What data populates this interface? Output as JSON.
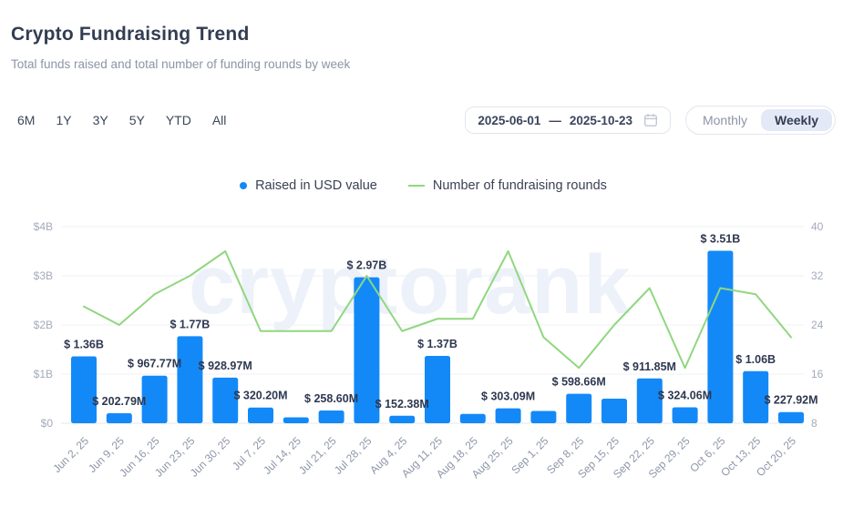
{
  "header": {
    "title": "Crypto Fundraising Trend",
    "subtitle": "Total funds raised and total number of funding rounds by week"
  },
  "controls": {
    "ranges": [
      "6M",
      "1Y",
      "3Y",
      "5Y",
      "YTD",
      "All"
    ],
    "date_range": {
      "start": "2025-06-01",
      "separator": "—",
      "end": "2025-10-23"
    },
    "interval_toggle": {
      "options": [
        "Monthly",
        "Weekly"
      ],
      "selected": "Weekly"
    }
  },
  "legend": {
    "raised_label": "Raised in USD value",
    "rounds_label": "Number of fundraising rounds"
  },
  "watermark": {
    "text": "cryptorank"
  },
  "colors": {
    "bar": "#1389f8",
    "line": "#90d77f"
  },
  "chart_data": {
    "type": "bar+line",
    "title": "Crypto Fundraising Trend",
    "categories": [
      "Jun 2, 25",
      "Jun 9, 25",
      "Jun 16, 25",
      "Jun 23, 25",
      "Jun 30, 25",
      "Jul 7, 25",
      "Jul 14, 25",
      "Jul 21, 25",
      "Jul 28, 25",
      "Aug 4, 25",
      "Aug 11, 25",
      "Aug 18, 25",
      "Aug 25, 25",
      "Sep 1, 25",
      "Sep 8, 25",
      "Sep 15, 25",
      "Sep 22, 25",
      "Sep 29, 25",
      "Oct 6, 25",
      "Oct 13, 25",
      "Oct 20, 25"
    ],
    "series": [
      {
        "name": "Raised in USD value",
        "type": "bar",
        "axis": "left",
        "unit": "USD billions",
        "values": [
          1.36,
          0.20279,
          0.96777,
          1.77,
          0.92897,
          0.3202,
          0.12,
          0.2586,
          2.97,
          0.15238,
          1.37,
          0.19,
          0.30309,
          0.25,
          0.59866,
          0.5,
          0.91185,
          0.32406,
          3.51,
          1.06,
          0.22792
        ],
        "labels": [
          "$ 1.36B",
          "$ 202.79M",
          "$ 967.77M",
          "$ 1.77B",
          "$ 928.97M",
          "$ 320.20M",
          "",
          "$ 258.60M",
          "$ 2.97B",
          "$ 152.38M",
          "$ 1.37B",
          "",
          "$ 303.09M",
          "",
          "$ 598.66M",
          "",
          "$ 911.85M",
          "$ 324.06M",
          "$ 3.51B",
          "$ 1.06B",
          "$ 227.92M"
        ]
      },
      {
        "name": "Number of fundraising rounds",
        "type": "line",
        "axis": "right",
        "unit": "rounds",
        "values": [
          27,
          24,
          29,
          32,
          36,
          23,
          23,
          23,
          32,
          23,
          25,
          25,
          36,
          22,
          17,
          24,
          30,
          17,
          30,
          29,
          22
        ]
      }
    ],
    "left_axis": {
      "ticks": [
        "$4B",
        "$3B",
        "$2B",
        "$1B",
        "$0"
      ],
      "tick_values": [
        4,
        3,
        2,
        1,
        0
      ],
      "range": [
        0,
        4
      ]
    },
    "right_axis": {
      "ticks": [
        "40",
        "32",
        "24",
        "16",
        "8"
      ],
      "tick_values": [
        40,
        32,
        24,
        16,
        8
      ],
      "range": [
        8,
        40
      ]
    },
    "grid": "horizontal",
    "legend_position": "top-center",
    "bar_color": "#1389f8",
    "line_color": "#90d77f"
  }
}
